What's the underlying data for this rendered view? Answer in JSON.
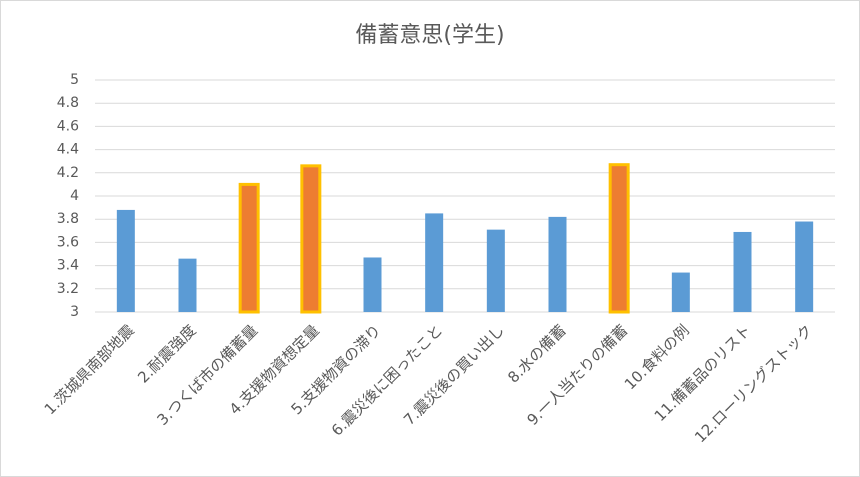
{
  "chart_data": {
    "type": "bar",
    "title": "備蓄意思(学生)",
    "categories": [
      "1.茨城県南部地震",
      "2.耐震強度",
      "3.つくば市の備蓄量",
      "4.支援物資想定量",
      "5.支援物資の滞り",
      "6.震災後に困ったこと",
      "7.震災後の買い出し",
      "8.水の備蓄",
      "9.一人当たりの備蓄",
      "10.食料の例",
      "11.備蓄品のリスト",
      "12.ローリングストック"
    ],
    "values": [
      3.88,
      3.46,
      4.1,
      4.26,
      3.47,
      3.85,
      3.71,
      3.82,
      4.27,
      3.34,
      3.69,
      3.78
    ],
    "colors": [
      "#5b9bd5",
      "#5b9bd5",
      "#ed7d31",
      "#ed7d31",
      "#5b9bd5",
      "#5b9bd5",
      "#5b9bd5",
      "#5b9bd5",
      "#ed7d31",
      "#5b9bd5",
      "#5b9bd5",
      "#5b9bd5"
    ],
    "border_colors": [
      null,
      null,
      "#ffc000",
      "#ffc000",
      null,
      null,
      null,
      null,
      "#ffc000",
      null,
      null,
      null
    ],
    "ylim": [
      3,
      5
    ],
    "yticks": [
      3,
      3.2,
      3.4,
      3.6,
      3.8,
      4,
      4.2,
      4.4,
      4.6,
      4.8,
      5
    ],
    "grid": true
  }
}
